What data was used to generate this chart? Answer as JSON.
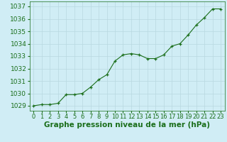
{
  "x": [
    0,
    1,
    2,
    3,
    4,
    5,
    6,
    7,
    8,
    9,
    10,
    11,
    12,
    13,
    14,
    15,
    16,
    17,
    18,
    19,
    20,
    21,
    22,
    23
  ],
  "y": [
    1029.0,
    1029.1,
    1029.1,
    1029.2,
    1029.9,
    1029.9,
    1030.0,
    1030.5,
    1031.1,
    1031.5,
    1032.6,
    1033.1,
    1033.2,
    1033.1,
    1032.8,
    1032.8,
    1033.1,
    1033.8,
    1034.0,
    1034.7,
    1035.5,
    1036.1,
    1036.8,
    1036.8
  ],
  "line_color": "#1a6e1a",
  "marker_color": "#1a6e1a",
  "bg_color": "#d0edf5",
  "grid_color": "#b8d8e0",
  "xlabel": "Graphe pression niveau de la mer (hPa)",
  "xlabel_color": "#1a6e1a",
  "tick_color": "#1a6e1a",
  "ylabel_ticks": [
    1029,
    1030,
    1031,
    1032,
    1033,
    1034,
    1035,
    1036,
    1037
  ],
  "ylim": [
    1028.6,
    1037.4
  ],
  "xlim": [
    -0.5,
    23.5
  ],
  "xtick_labels": [
    "0",
    "1",
    "2",
    "3",
    "4",
    "5",
    "6",
    "7",
    "8",
    "9",
    "10",
    "11",
    "12",
    "13",
    "14",
    "15",
    "16",
    "17",
    "18",
    "19",
    "20",
    "21",
    "22",
    "23"
  ],
  "font_size": 6.5,
  "xlabel_font_size": 7.5
}
